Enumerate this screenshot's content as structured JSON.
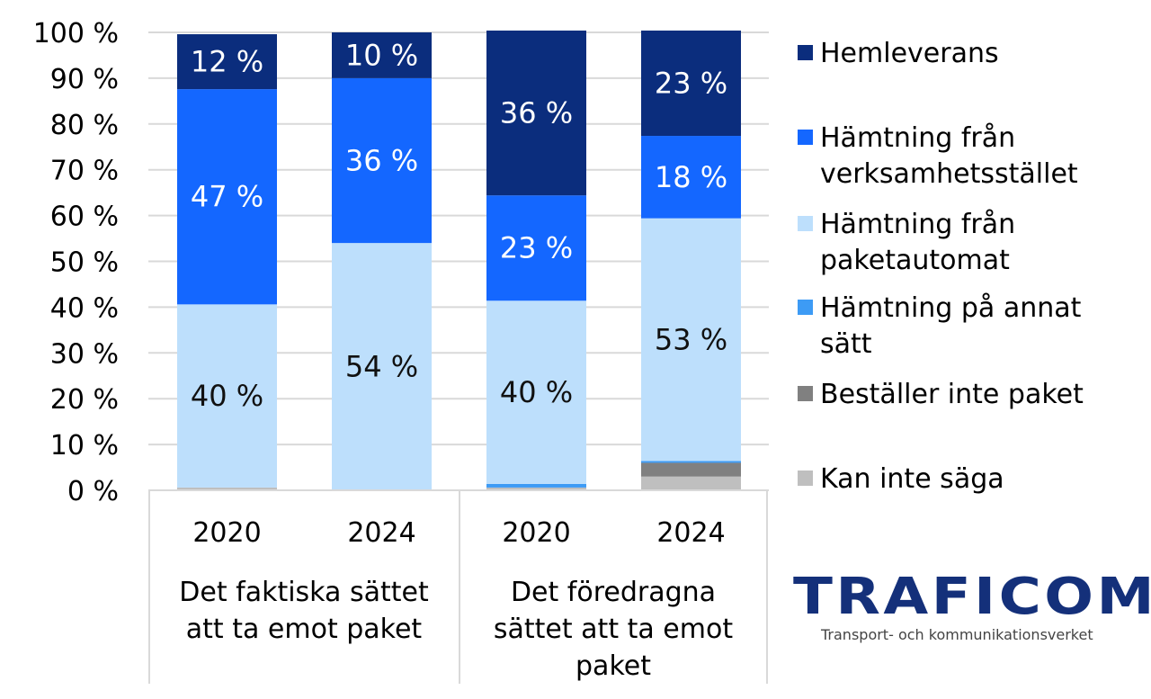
{
  "chart_data": {
    "type": "bar",
    "stacked": true,
    "percent": true,
    "ylim": [
      0,
      100
    ],
    "yticks": [
      "0 %",
      "10 %",
      "20 %",
      "30 %",
      "40 %",
      "50 %",
      "60 %",
      "70 %",
      "80 %",
      "90 %",
      "100 %"
    ],
    "grid": true,
    "legend_position": "right",
    "groups": [
      {
        "label": "Det faktiska sättet att ta emot paket",
        "label_lines": [
          "Det faktiska sättet",
          "att ta emot paket"
        ],
        "categories": [
          "2020",
          "2024"
        ]
      },
      {
        "label": "Det föredragna sättet att ta emot paket",
        "label_lines": [
          "Det föredragna",
          "sättet att ta emot",
          "paket"
        ],
        "categories": [
          "2020",
          "2024"
        ]
      }
    ],
    "series": [
      {
        "name": "Kan inte säga",
        "color": "#bfbfbf",
        "values": [
          0.6,
          0,
          0.6,
          3
        ],
        "labels": [
          "",
          "",
          "",
          ""
        ]
      },
      {
        "name": "Beställer inte paket",
        "color": "#808080",
        "values": [
          0,
          0,
          0,
          3
        ],
        "labels": [
          "",
          "",
          "",
          ""
        ]
      },
      {
        "name": "Hämtning på annat sätt",
        "color": "#3d9bf5",
        "values": [
          0,
          0,
          0.8,
          0.4
        ],
        "labels": [
          "",
          "",
          "",
          ""
        ]
      },
      {
        "name": "Hämtning från paketautomat",
        "color": "#bddffc",
        "values": [
          40,
          54,
          40,
          53
        ],
        "labels": [
          "40 %",
          "54 %",
          "40 %",
          "53 %"
        ],
        "label_color": "#111111"
      },
      {
        "name": "Hämtning från verksamhetsstället",
        "color": "#1467ff",
        "values": [
          47,
          36,
          23,
          18
        ],
        "labels": [
          "47 %",
          "36 %",
          "23 %",
          "18 %"
        ],
        "label_color": "#ffffff"
      },
      {
        "name": "Hemleverans",
        "color": "#0b2d7d",
        "values": [
          12,
          10,
          36,
          23
        ],
        "labels": [
          "12 %",
          "10 %",
          "36 %",
          "23 %"
        ],
        "label_color": "#ffffff"
      }
    ],
    "legend": [
      {
        "lines": [
          "Hemleverans"
        ],
        "color": "#0b2d7d"
      },
      {
        "lines": [
          "Hämtning från",
          "verksamhetsstället"
        ],
        "color": "#1467ff"
      },
      {
        "lines": [
          "Hämtning från",
          "paketautomat"
        ],
        "color": "#bddffc"
      },
      {
        "lines": [
          "Hämtning på annat",
          "sätt"
        ],
        "color": "#3d9bf5"
      },
      {
        "lines": [
          "Beställer inte paket"
        ],
        "color": "#808080"
      },
      {
        "lines": [
          "Kan inte säga"
        ],
        "color": "#bfbfbf"
      }
    ]
  },
  "logo": {
    "name": "TRAFICOM",
    "subtitle": "Transport- och kommunikationsverket",
    "color": "#14307a"
  }
}
